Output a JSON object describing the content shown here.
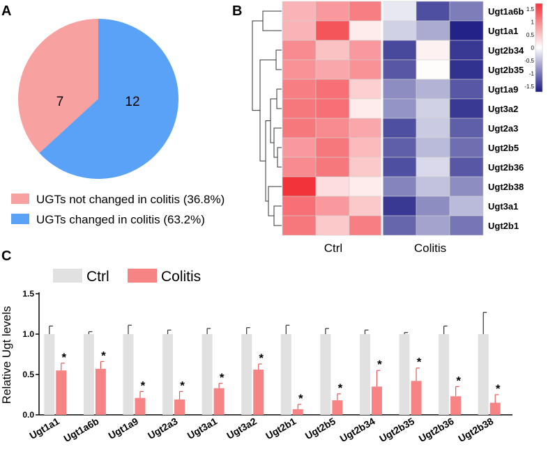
{
  "panels": {
    "a": "A",
    "b": "B",
    "c": "C"
  },
  "colors": {
    "pie_not_changed": "#f7a1a1",
    "pie_changed": "#5aa2f7",
    "ctrl_bar": "#e1e1e1",
    "colitis_bar": "#f68484",
    "heat_high": "#f2333a",
    "heat_mid": "#ffffff",
    "heat_low": "#1a1a84"
  },
  "chart_data": [
    {
      "type": "pie",
      "panel": "A",
      "slices": [
        {
          "label": "UGTs not changed in colitis (36.8%)",
          "value": 7,
          "color_key": "pie_not_changed"
        },
        {
          "label": "UGTs changed in colitis (63.2%)",
          "value": 12,
          "color_key": "pie_changed"
        }
      ]
    },
    {
      "type": "heatmap",
      "panel": "B",
      "rows": [
        "Ugt1a6b",
        "Ugt1a1",
        "Ugt2b34",
        "Ugt2b35",
        "Ugt1a9",
        "Ugt3a2",
        "Ugt2a3",
        "Ugt2b5",
        "Ugt2b36",
        "Ugt2b38",
        "Ugt3a1",
        "Ugt2b1"
      ],
      "groups": [
        "Ctrl",
        "Colitis"
      ],
      "columns_per_group": 3,
      "colorbar_ticks": [
        "1.5",
        "1",
        "0.5",
        "0",
        "-0.5",
        "-1",
        "-1.5"
      ],
      "range": [
        -1.5,
        1.5
      ],
      "values": [
        [
          0.55,
          0.75,
          0.95,
          -0.15,
          -1.15,
          -0.85
        ],
        [
          0.55,
          1.25,
          0.15,
          -0.3,
          -0.55,
          -1.45
        ],
        [
          0.85,
          0.45,
          0.75,
          -1.2,
          0.1,
          -1.3
        ],
        [
          0.8,
          0.65,
          0.8,
          -1.1,
          0.02,
          -1.35
        ],
        [
          0.95,
          1.05,
          0.35,
          -0.75,
          -0.5,
          -1.1
        ],
        [
          1.0,
          1.05,
          0.15,
          -0.7,
          -0.3,
          -1.3
        ],
        [
          1.0,
          0.85,
          0.65,
          -1.15,
          -0.35,
          -1.05
        ],
        [
          0.75,
          1.0,
          0.5,
          -1.05,
          -0.45,
          -0.95
        ],
        [
          0.85,
          1.0,
          0.4,
          -1.15,
          -0.25,
          -1.1
        ],
        [
          1.5,
          0.25,
          0.15,
          -0.8,
          -0.4,
          -0.75
        ],
        [
          1.05,
          0.75,
          0.4,
          -1.3,
          -0.75,
          -0.45
        ],
        [
          1.0,
          0.4,
          0.95,
          -1.0,
          -0.6,
          -0.9
        ]
      ]
    },
    {
      "type": "bar",
      "panel": "C",
      "ylabel": "Relative Ugt levels",
      "ylim": [
        0,
        1.5
      ],
      "yticks": [
        "0.0",
        "0.5",
        "1.0",
        "1.5"
      ],
      "categories": [
        "Ugt1a1",
        "Ugt1a6b",
        "Ugt1a9",
        "Ugt2a3",
        "Ugt3a1",
        "Ugt3a2",
        "Ugt2b1",
        "Ugt2b5",
        "Ugt2b34",
        "Ugt2b35",
        "Ugt2b36",
        "Ugt2b38"
      ],
      "series": [
        {
          "name": "Ctrl",
          "color_key": "ctrl_bar",
          "values": [
            1.0,
            1.0,
            1.0,
            1.0,
            1.0,
            1.0,
            1.0,
            1.0,
            1.0,
            1.0,
            1.0,
            1.0
          ],
          "errors": [
            0.1,
            0.03,
            0.11,
            0.05,
            0.07,
            0.08,
            0.11,
            0.07,
            0.05,
            0.02,
            0.1,
            0.27
          ]
        },
        {
          "name": "Colitis",
          "color_key": "colitis_bar",
          "values": [
            0.55,
            0.57,
            0.21,
            0.19,
            0.33,
            0.56,
            0.07,
            0.18,
            0.35,
            0.42,
            0.23,
            0.15
          ],
          "errors": [
            0.09,
            0.09,
            0.08,
            0.1,
            0.06,
            0.07,
            0.06,
            0.08,
            0.2,
            0.16,
            0.12,
            0.1
          ]
        }
      ],
      "significance": [
        "*",
        "*",
        "*",
        "*",
        "*",
        "*",
        "*",
        "*",
        "*",
        "*",
        "*",
        "*"
      ]
    }
  ]
}
